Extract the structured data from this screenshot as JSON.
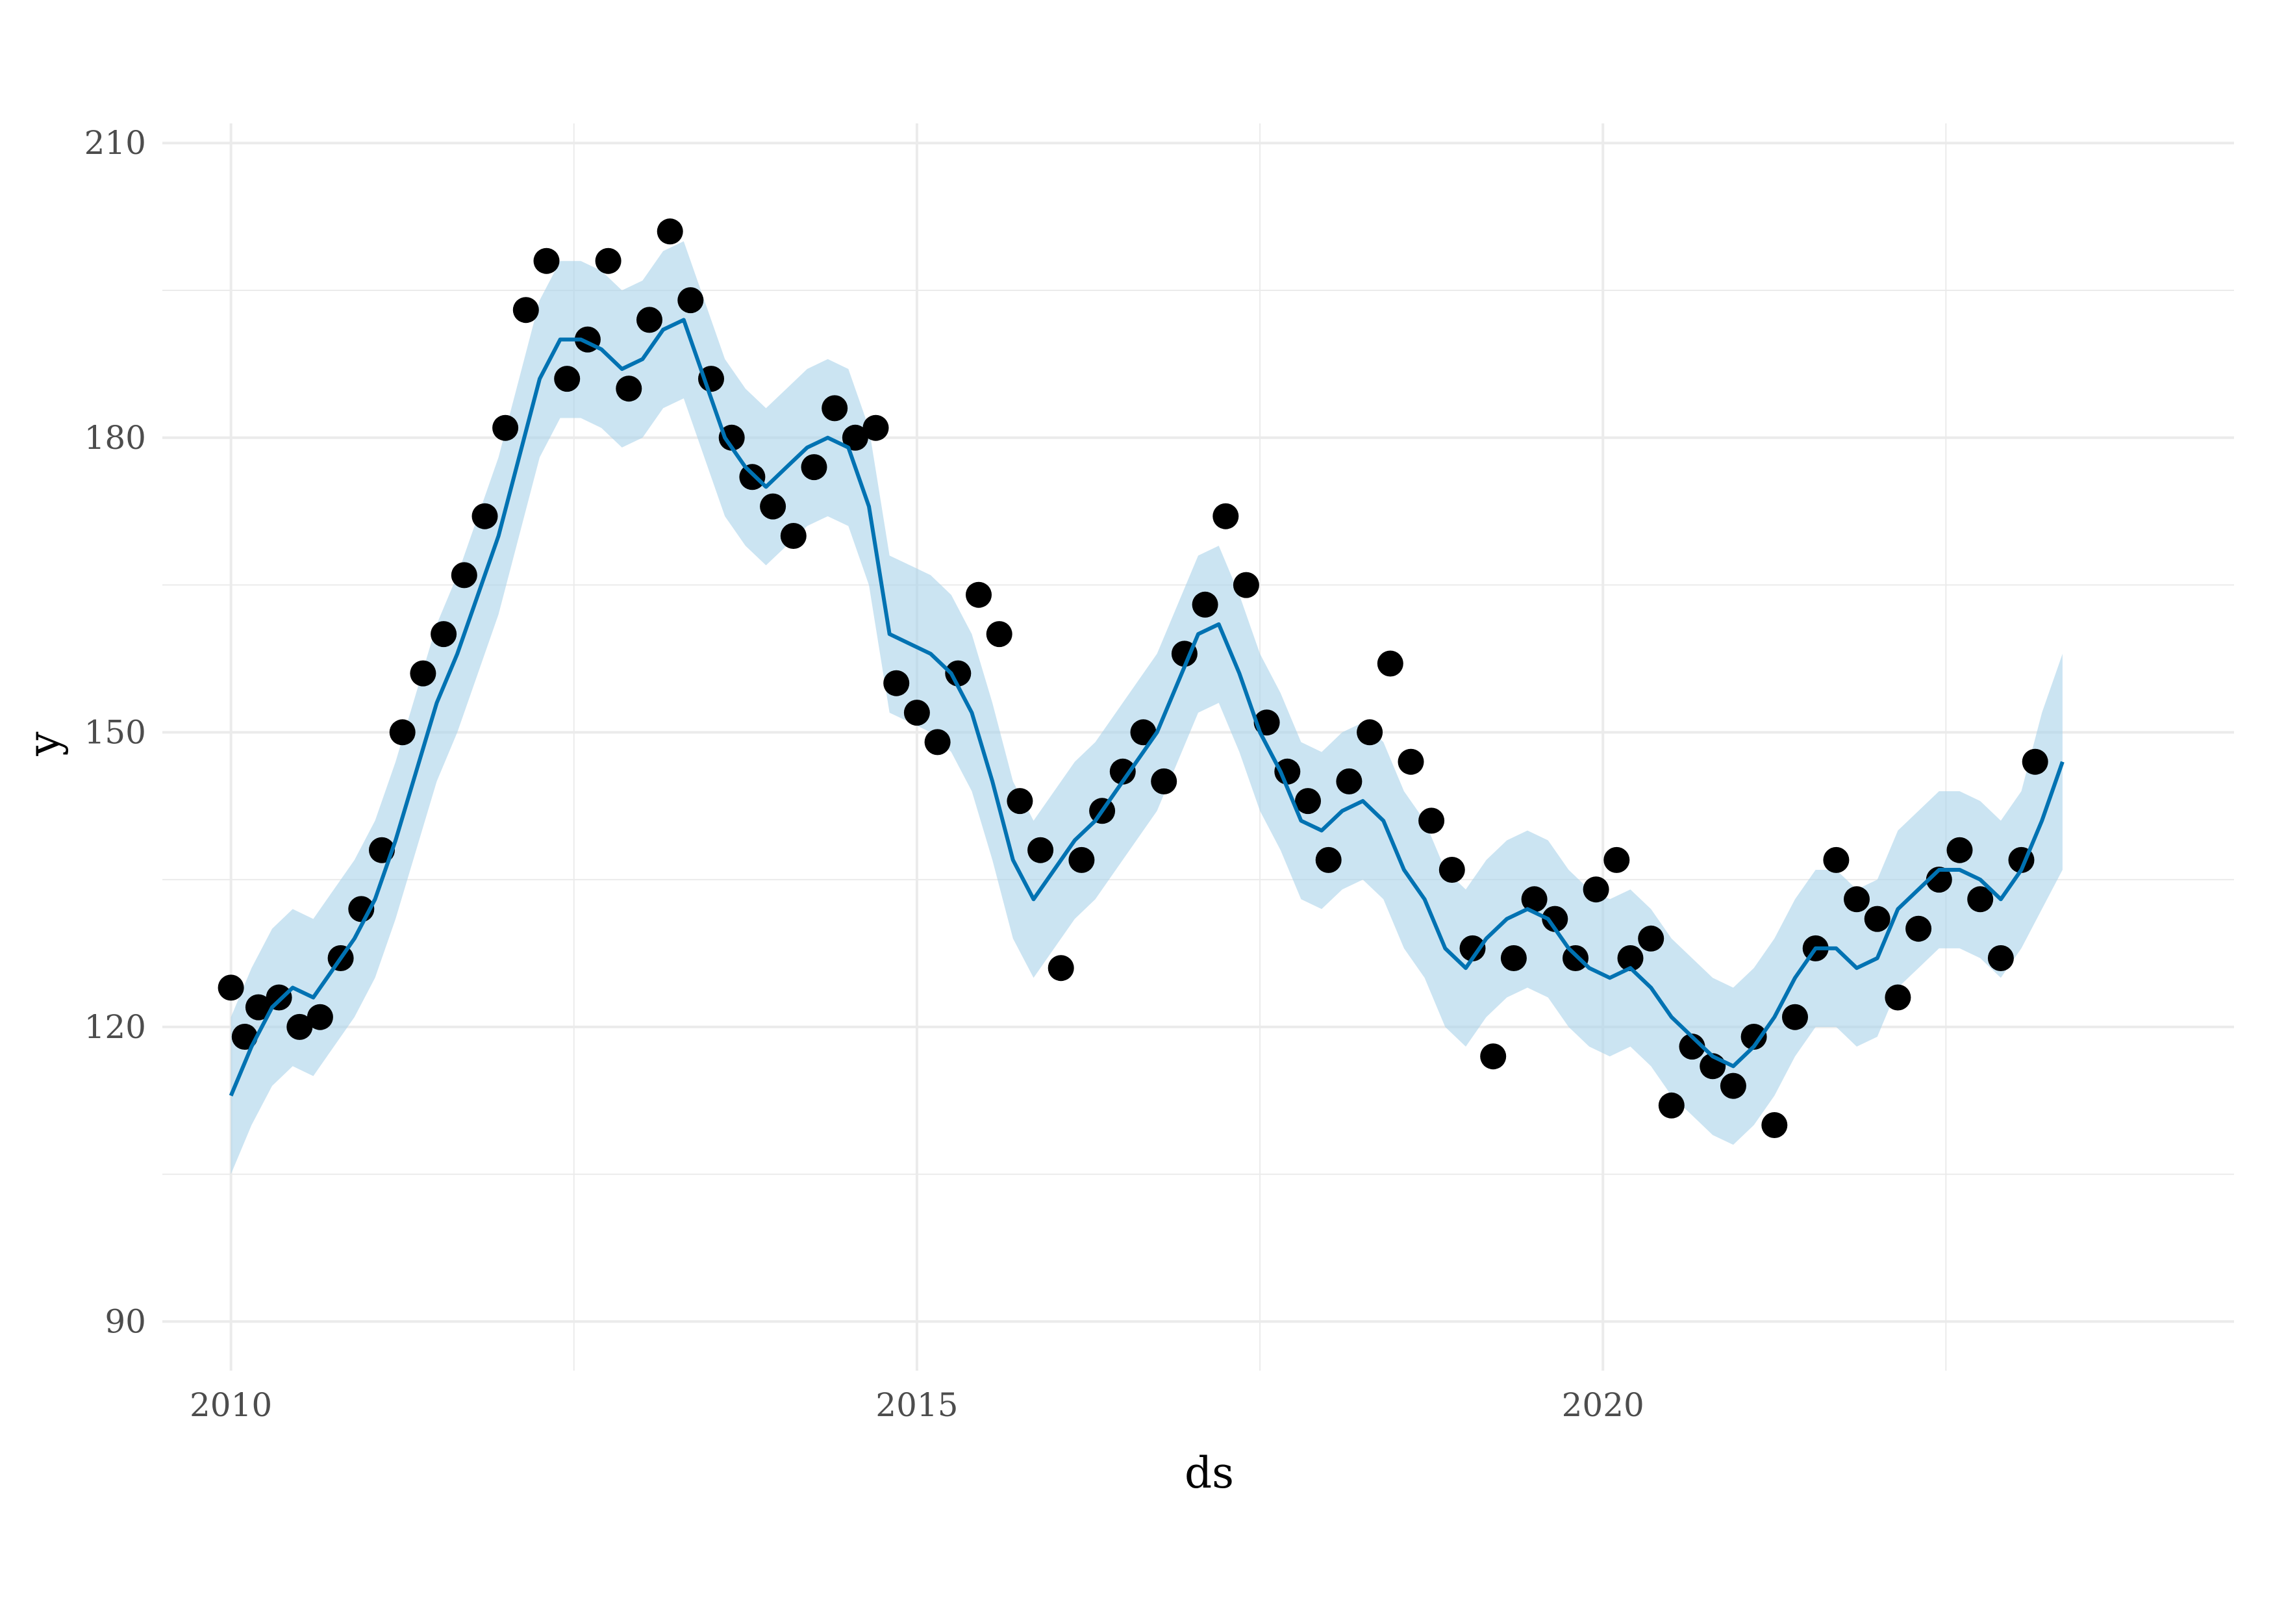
{
  "chart_data": {
    "type": "scatter",
    "title": "",
    "xlabel": "ds",
    "ylabel": "y",
    "xlim": [
      2009.5,
      2024.6
    ],
    "ylim": [
      85,
      212
    ],
    "x_ticks": [
      2010,
      2015,
      2020
    ],
    "y_ticks": [
      90,
      120,
      150,
      180,
      210
    ],
    "grid": true,
    "legend": "none",
    "colors": {
      "points": "#000000",
      "forecast_line": "#0072B2",
      "interval_band": "#A9D2EA",
      "grid": "#EBEBEB",
      "tick_text": "#4D4D4D",
      "title_text": "#000000"
    },
    "series": [
      {
        "type": "scatter",
        "x": [
          2010.0,
          2010.1,
          2010.2,
          2010.35,
          2010.5,
          2010.65,
          2010.8,
          2010.95,
          2011.1,
          2011.25,
          2011.4,
          2011.55,
          2011.7,
          2011.85,
          2012.0,
          2012.15,
          2012.3,
          2012.45,
          2012.6,
          2012.75,
          2012.9,
          2013.05,
          2013.2,
          2013.35,
          2013.5,
          2013.65,
          2013.8,
          2013.95,
          2014.1,
          2014.25,
          2014.4,
          2014.55,
          2014.7,
          2014.85,
          2015.0,
          2015.15,
          2015.3,
          2015.45,
          2015.6,
          2015.75,
          2015.9,
          2016.05,
          2016.2,
          2016.35,
          2016.5,
          2016.65,
          2016.8,
          2016.95,
          2017.1,
          2017.25,
          2017.4,
          2017.55,
          2017.7,
          2017.85,
          2018.0,
          2018.15,
          2018.3,
          2018.45,
          2018.6,
          2018.75,
          2018.9,
          2019.05,
          2019.2,
          2019.35,
          2019.5,
          2019.65,
          2019.8,
          2019.95,
          2020.1,
          2020.2,
          2020.35,
          2020.5,
          2020.65,
          2020.8,
          2020.95,
          2021.1,
          2021.25,
          2021.4,
          2021.55,
          2021.7,
          2021.85,
          2022.0,
          2022.15,
          2022.3,
          2022.45,
          2022.6,
          2022.75,
          2022.9,
          2023.05,
          2023.15
        ],
        "y": [
          124,
          119,
          122,
          123,
          120,
          121,
          127,
          132,
          138,
          150,
          156,
          160,
          166,
          172,
          181,
          193,
          198,
          186,
          190,
          198,
          185,
          192,
          201,
          194,
          186,
          180,
          176,
          173,
          170,
          177,
          183,
          180,
          181,
          155,
          152,
          149,
          156,
          164,
          160,
          143,
          138,
          126,
          137,
          142,
          146,
          150,
          145,
          158,
          163,
          172,
          165,
          151,
          146,
          143,
          137,
          145,
          150,
          157,
          147,
          141,
          136,
          128,
          117,
          127,
          133,
          131,
          127,
          134,
          137,
          127,
          129,
          112,
          118,
          116,
          114,
          119,
          110,
          121,
          128,
          137,
          133,
          131,
          123,
          130,
          135,
          138,
          133,
          127,
          137,
          147
        ]
      },
      {
        "type": "line",
        "name": "",
        "x": [
          2010.0,
          2010.15,
          2010.3,
          2010.45,
          2010.6,
          2010.75,
          2010.9,
          2011.05,
          2011.2,
          2011.35,
          2011.5,
          2011.65,
          2011.8,
          2011.95,
          2012.1,
          2012.25,
          2012.4,
          2012.55,
          2012.7,
          2012.85,
          2013.0,
          2013.15,
          2013.3,
          2013.45,
          2013.6,
          2013.75,
          2013.9,
          2014.05,
          2014.2,
          2014.35,
          2014.5,
          2014.65,
          2014.8,
          2014.95,
          2015.1,
          2015.25,
          2015.4,
          2015.55,
          2015.7,
          2015.85,
          2016.0,
          2016.15,
          2016.3,
          2016.45,
          2016.6,
          2016.75,
          2016.9,
          2017.05,
          2017.2,
          2017.35,
          2017.5,
          2017.65,
          2017.8,
          2017.95,
          2018.1,
          2018.25,
          2018.4,
          2018.55,
          2018.7,
          2018.85,
          2019.0,
          2019.15,
          2019.3,
          2019.45,
          2019.6,
          2019.75,
          2019.9,
          2020.05,
          2020.2,
          2020.35,
          2020.5,
          2020.65,
          2020.8,
          2020.95,
          2021.1,
          2021.25,
          2021.4,
          2021.55,
          2021.7,
          2021.85,
          2022.0,
          2022.15,
          2022.3,
          2022.45,
          2022.6,
          2022.75,
          2022.9,
          2023.05,
          2023.2,
          2023.35
        ],
        "y": [
          113,
          118,
          122,
          124,
          123,
          126,
          129,
          133,
          139,
          146,
          153,
          158,
          164,
          170,
          178,
          186,
          190,
          190,
          189,
          187,
          188,
          191,
          192,
          186,
          180,
          177,
          175,
          177,
          179,
          180,
          179,
          173,
          160,
          159,
          158,
          156,
          152,
          145,
          137,
          133,
          136,
          139,
          141,
          144,
          147,
          150,
          155,
          160,
          161,
          156,
          150,
          146,
          141,
          140,
          142,
          143,
          141,
          136,
          133,
          128,
          126,
          129,
          131,
          132,
          131,
          128,
          126,
          125,
          126,
          124,
          121,
          119,
          117,
          116,
          118,
          121,
          125,
          128,
          128,
          126,
          127,
          132,
          134,
          136,
          136,
          135,
          133,
          136,
          141,
          147
        ]
      },
      {
        "type": "area",
        "name": "",
        "x": [
          2010.0,
          2010.15,
          2010.3,
          2010.45,
          2010.6,
          2010.75,
          2010.9,
          2011.05,
          2011.2,
          2011.35,
          2011.5,
          2011.65,
          2011.8,
          2011.95,
          2012.1,
          2012.25,
          2012.4,
          2012.55,
          2012.7,
          2012.85,
          2013.0,
          2013.15,
          2013.3,
          2013.45,
          2013.6,
          2013.75,
          2013.9,
          2014.05,
          2014.2,
          2014.35,
          2014.5,
          2014.65,
          2014.8,
          2014.95,
          2015.1,
          2015.25,
          2015.4,
          2015.55,
          2015.7,
          2015.85,
          2016.0,
          2016.15,
          2016.3,
          2016.45,
          2016.6,
          2016.75,
          2016.9,
          2017.05,
          2017.2,
          2017.35,
          2017.5,
          2017.65,
          2017.8,
          2017.95,
          2018.1,
          2018.25,
          2018.4,
          2018.55,
          2018.7,
          2018.85,
          2019.0,
          2019.15,
          2019.3,
          2019.45,
          2019.6,
          2019.75,
          2019.9,
          2020.05,
          2020.2,
          2020.35,
          2020.5,
          2020.65,
          2020.8,
          2020.95,
          2021.1,
          2021.25,
          2021.4,
          2021.55,
          2021.7,
          2021.85,
          2022.0,
          2022.15,
          2022.3,
          2022.45,
          2022.6,
          2022.75,
          2022.9,
          2023.05,
          2023.2,
          2023.35
        ],
        "y_upper": [
          121,
          126,
          130,
          132,
          131,
          134,
          137,
          141,
          147,
          154,
          161,
          166,
          172,
          178,
          186,
          194,
          198,
          198,
          197,
          195,
          196,
          199,
          200,
          194,
          188,
          185,
          183,
          185,
          187,
          188,
          187,
          181,
          168,
          167,
          166,
          164,
          160,
          153,
          145,
          141,
          144,
          147,
          149,
          152,
          155,
          158,
          163,
          168,
          169,
          164,
          158,
          154,
          149,
          148,
          150,
          151,
          149,
          144,
          141,
          136,
          134,
          137,
          139,
          140,
          139,
          136,
          134,
          133,
          134,
          132,
          129,
          127,
          125,
          124,
          126,
          129,
          133,
          136,
          136,
          134,
          135,
          140,
          142,
          144,
          144,
          143,
          141,
          144,
          152,
          158
        ],
        "y_lower": [
          105,
          110,
          114,
          116,
          115,
          118,
          121,
          125,
          131,
          138,
          145,
          150,
          156,
          162,
          170,
          178,
          182,
          182,
          181,
          179,
          180,
          183,
          184,
          178,
          172,
          169,
          167,
          169,
          171,
          172,
          171,
          165,
          152,
          151,
          150,
          148,
          144,
          137,
          129,
          125,
          128,
          131,
          133,
          136,
          139,
          142,
          147,
          152,
          153,
          148,
          142,
          138,
          133,
          132,
          134,
          135,
          133,
          128,
          125,
          120,
          118,
          121,
          123,
          124,
          123,
          120,
          118,
          117,
          118,
          116,
          113,
          111,
          109,
          108,
          110,
          113,
          117,
          120,
          120,
          118,
          119,
          124,
          126,
          128,
          128,
          127,
          125,
          128,
          132,
          136
        ]
      }
    ]
  }
}
